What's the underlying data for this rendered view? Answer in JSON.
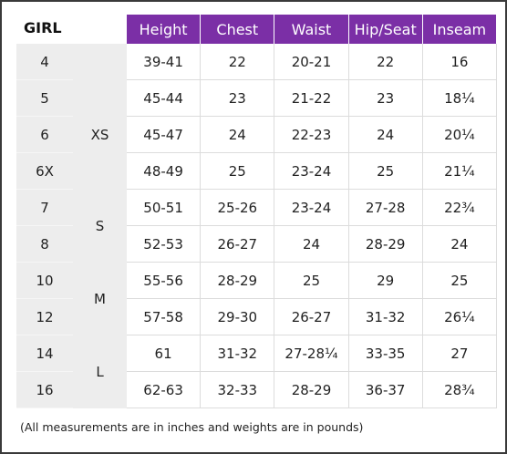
{
  "header": {
    "title": "GIRL",
    "columns": [
      "Height",
      "Chest",
      "Waist",
      "Hip/Seat",
      "Inseam"
    ]
  },
  "table": {
    "rows": [
      [
        "4",
        null,
        "39-41",
        "22",
        "20-21",
        "22",
        "16"
      ],
      [
        "5",
        "XS",
        "45-44",
        "23",
        "21-22",
        "23",
        "18¼"
      ],
      [
        "6",
        null,
        "45-47",
        "24",
        "22-23",
        "24",
        "20¼"
      ],
      [
        "6X",
        null,
        "48-49",
        "25",
        "23-24",
        "25",
        "21¼"
      ],
      [
        "7",
        "S",
        "50-51",
        "25-26",
        "23-24",
        "27-28",
        "22¾"
      ],
      [
        "8",
        null,
        "52-53",
        "26-27",
        "24",
        "28-29",
        "24"
      ],
      [
        "10",
        "M",
        "55-56",
        "28-29",
        "25",
        "29",
        "25"
      ],
      [
        "12",
        null,
        "57-58",
        "29-30",
        "26-27",
        "31-32",
        "26¼"
      ],
      [
        "14",
        "L",
        "61",
        "31-32",
        "27-28¼",
        "33-35",
        "27"
      ],
      [
        "16",
        null,
        "62-63",
        "32-33",
        "28-29",
        "36-37",
        "28¾"
      ]
    ]
  },
  "footnote": "(All measurements are in inches and weights are in pounds)"
}
